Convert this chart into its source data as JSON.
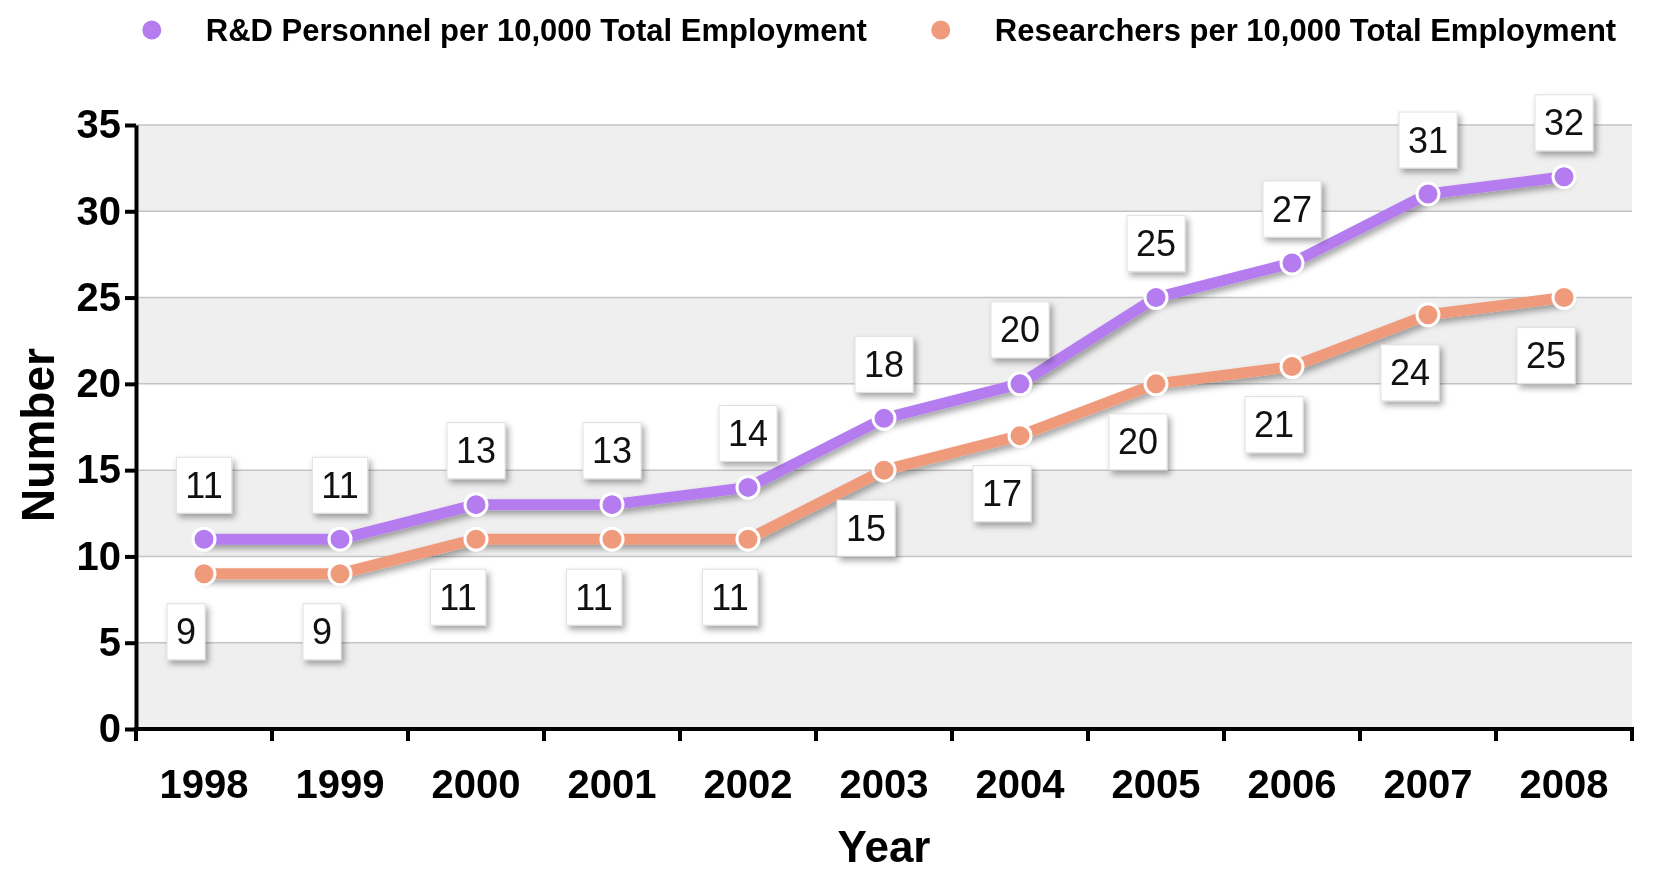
{
  "chart_data": {
    "type": "line",
    "categories": [
      "1998",
      "1999",
      "2000",
      "2001",
      "2002",
      "2003",
      "2004",
      "2005",
      "2006",
      "2007",
      "2008"
    ],
    "series": [
      {
        "name": "R&D Personnel per 10,000 Total Employment",
        "color": "#b57cf0",
        "values": [
          11,
          11,
          13,
          13,
          14,
          18,
          20,
          25,
          27,
          31,
          32
        ]
      },
      {
        "name": "Researchers per 10,000 Total Employment",
        "color": "#f09a7c",
        "values": [
          9,
          9,
          11,
          11,
          11,
          15,
          17,
          20,
          21,
          24,
          25
        ]
      }
    ],
    "xlabel": "Year",
    "ylabel": "Number",
    "ylim": [
      0,
      35
    ],
    "yticks": [
      0,
      5,
      10,
      15,
      20,
      25,
      30,
      35
    ],
    "grid": "y",
    "legend": "top",
    "marker": "circle",
    "line_style": "solid",
    "data_labels": true
  }
}
